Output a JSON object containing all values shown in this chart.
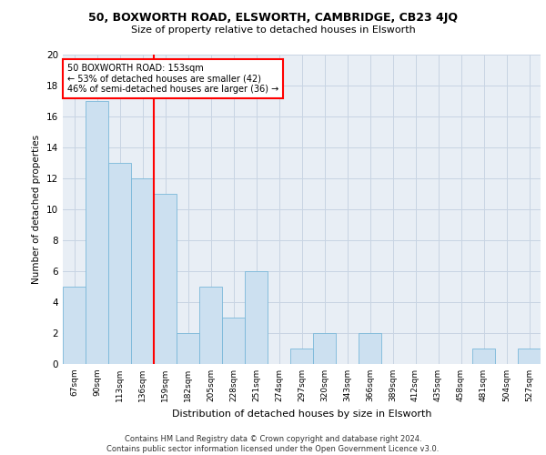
{
  "title1": "50, BOXWORTH ROAD, ELSWORTH, CAMBRIDGE, CB23 4JQ",
  "title2": "Size of property relative to detached houses in Elsworth",
  "xlabel": "Distribution of detached houses by size in Elsworth",
  "ylabel": "Number of detached properties",
  "categories": [
    "67sqm",
    "90sqm",
    "113sqm",
    "136sqm",
    "159sqm",
    "182sqm",
    "205sqm",
    "228sqm",
    "251sqm",
    "274sqm",
    "297sqm",
    "320sqm",
    "343sqm",
    "366sqm",
    "389sqm",
    "412sqm",
    "435sqm",
    "458sqm",
    "481sqm",
    "504sqm",
    "527sqm"
  ],
  "values": [
    5,
    17,
    13,
    12,
    11,
    2,
    5,
    3,
    6,
    0,
    1,
    2,
    0,
    2,
    0,
    0,
    0,
    0,
    1,
    0,
    1
  ],
  "bar_color": "#cce0f0",
  "bar_edge_color": "#7ab8d9",
  "grid_color": "#c8d4e3",
  "background_color": "#e8eef5",
  "red_line_x": 3.5,
  "annotation_text": "50 BOXWORTH ROAD: 153sqm\n← 53% of detached houses are smaller (42)\n46% of semi-detached houses are larger (36) →",
  "annotation_box_color": "white",
  "annotation_box_edge_color": "red",
  "footer": "Contains HM Land Registry data © Crown copyright and database right 2024.\nContains public sector information licensed under the Open Government Licence v3.0.",
  "ylim": [
    0,
    20
  ],
  "yticks": [
    0,
    2,
    4,
    6,
    8,
    10,
    12,
    14,
    16,
    18,
    20
  ],
  "fig_width": 6.0,
  "fig_height": 5.0,
  "dpi": 100
}
